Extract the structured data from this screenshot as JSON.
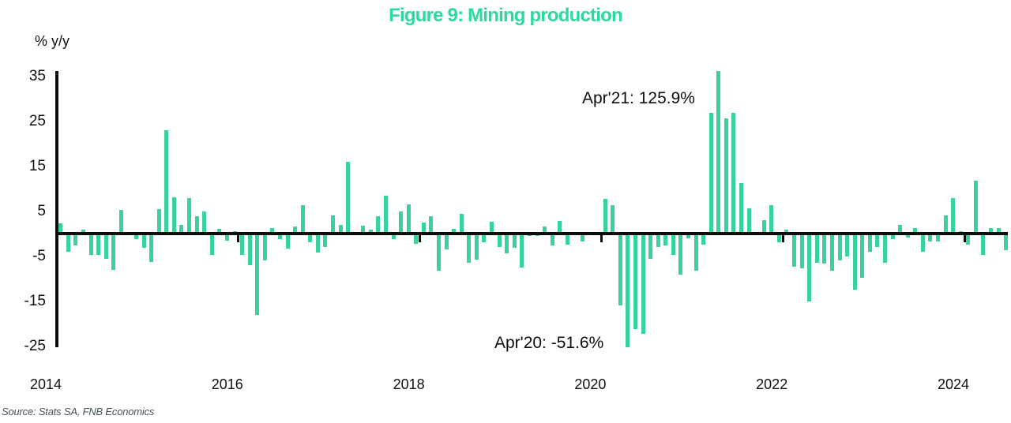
{
  "title": {
    "text": "Figure 9: Mining production",
    "color": "#2bd9a0"
  },
  "axis_unit_label": "% y/y",
  "annotations": [
    {
      "text": "Apr'21: 125.9%",
      "month": "2021-04"
    },
    {
      "text": "Apr'20: -51.6%",
      "month": "2020-04"
    }
  ],
  "source": "Source: Stats SA, FNB Economics",
  "chart_data": {
    "type": "bar",
    "title": "Figure 9: Mining production",
    "ylabel": "% y/y",
    "frequency": "monthly",
    "start_month": "2014-01",
    "end_month": "2024-06",
    "values": [
      2.3,
      -4.1,
      -2.7,
      0.9,
      -4.8,
      -4.7,
      -5.7,
      -8.1,
      5.3,
      0,
      -1.2,
      -3.2,
      -6.3,
      5.4,
      23,
      8.1,
      1.9,
      7.9,
      3.8,
      5,
      -4.7,
      1,
      -1.5,
      0.6,
      -4.8,
      -7.1,
      -18,
      -6,
      1.2,
      -1.2,
      -3.3,
      1.5,
      6.4,
      -2,
      -4.2,
      -3,
      4.1,
      1.9,
      16,
      0,
      1.8,
      0.9,
      3.8,
      8.4,
      -1.2,
      4.9,
      6.5,
      -2.2,
      2.4,
      3.8,
      -8.2,
      -3.5,
      1.1,
      4.3,
      -6.5,
      -5.8,
      -1.9,
      2.7,
      -2.9,
      -4.3,
      -3.2,
      -7.6,
      -0.5,
      -0.5,
      1.5,
      -2.7,
      2.8,
      -2.5,
      -0.4,
      -1.8,
      -0.3,
      0,
      7.7,
      6.3,
      -16,
      -51.6,
      -21.2,
      -22.3,
      -5.7,
      -2.9,
      -2.7,
      -4.8,
      -9.2,
      -1,
      -8.3,
      -2.5,
      26.8,
      125.9,
      25.6,
      26.9,
      11.3,
      5.6,
      0,
      3,
      6.4,
      -1.9,
      0.9,
      -7.4,
      -7.7,
      -15,
      -6.5,
      -6.7,
      -8.3,
      -6,
      -5,
      -12.4,
      -9.8,
      -4.1,
      -3,
      -6.5,
      -1.2,
      2,
      -0.8,
      1.2,
      -4.1,
      -1.8,
      -1.8,
      4.1,
      7.9,
      0.5,
      -2.5,
      11.7,
      -4.7,
      1.2,
      1.2,
      -3.6
    ],
    "ylim": [
      -25.3,
      36.1
    ],
    "yticks": [
      35,
      25,
      15,
      5,
      -5,
      -15,
      -25
    ],
    "ytick_labels": [
      "35",
      "25",
      "15",
      "5",
      "-5",
      "-15",
      "-25"
    ],
    "x_tick_labels": [
      "2014",
      "2016",
      "2018",
      "2020",
      "2022",
      "2024"
    ],
    "grid": false,
    "legend": false,
    "bar_color": "#38d1a0",
    "clipped_bars_note": "Apr 2020 (-51.6%) and Apr 2021 (+125.9%) extend beyond the visible axis range and are annotated with their true values"
  }
}
